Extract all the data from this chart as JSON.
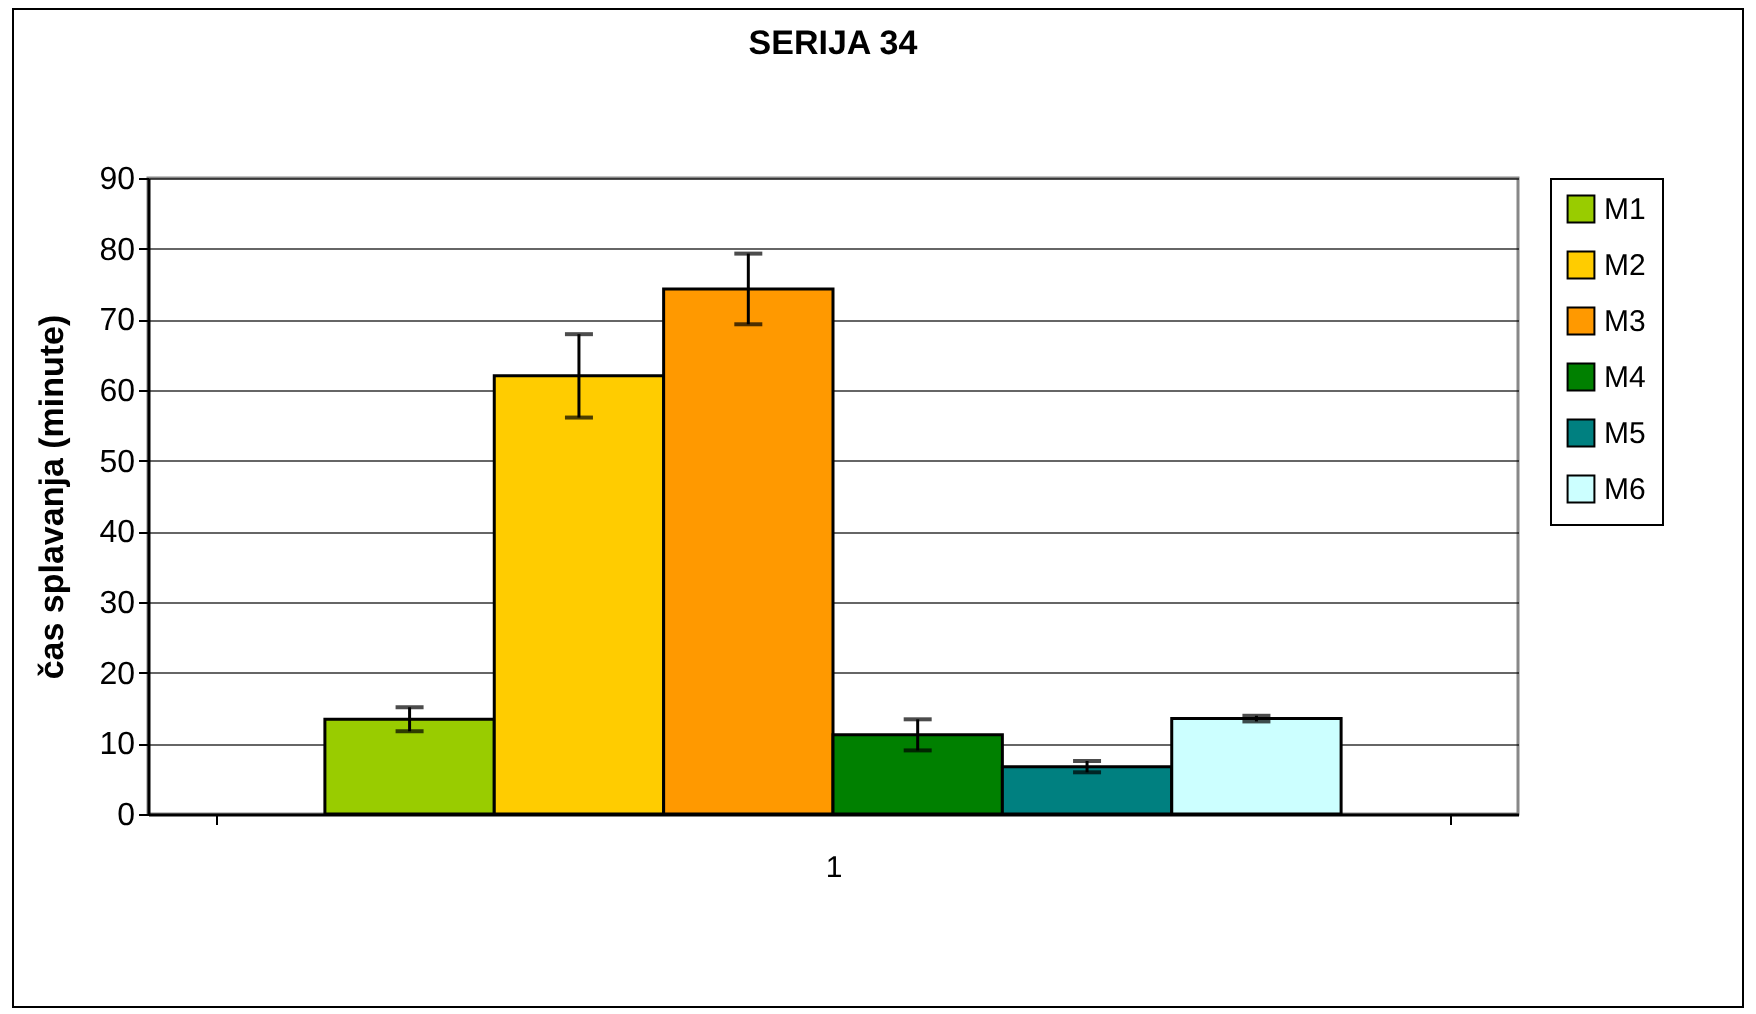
{
  "chart_data": {
    "type": "bar",
    "title": "SERIJA 34",
    "ylabel": "čas splavanja (minute)",
    "categories": [
      "1"
    ],
    "series": [
      {
        "name": "M1",
        "color": "#99cc00",
        "values": [
          13.4
        ],
        "errors": [
          1.7
        ]
      },
      {
        "name": "M2",
        "color": "#ffcc00",
        "values": [
          62.0
        ],
        "errors": [
          5.9
        ]
      },
      {
        "name": "M3",
        "color": "#ff9900",
        "values": [
          74.3
        ],
        "errors": [
          5.0
        ]
      },
      {
        "name": "M4",
        "color": "#008000",
        "values": [
          11.2
        ],
        "errors": [
          2.2
        ]
      },
      {
        "name": "M5",
        "color": "#008080",
        "values": [
          6.7
        ],
        "errors": [
          0.8
        ]
      },
      {
        "name": "M6",
        "color": "#ccffff",
        "values": [
          13.5
        ],
        "errors": [
          0.4
        ]
      }
    ],
    "ylim": [
      0,
      90
    ],
    "yticks": [
      0,
      10,
      20,
      30,
      40,
      50,
      60,
      70,
      80,
      90
    ],
    "grid": "y",
    "legend": "right"
  }
}
